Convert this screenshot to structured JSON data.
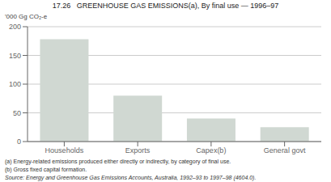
{
  "chart_data": {
    "type": "bar",
    "title": "17.26   GREENHOUSE GAS EMISSIONS(a), By final use — 1996–97",
    "y_label": "'000 Gg CO₂-e",
    "categories": [
      "Households",
      "Exports",
      "Capex(b)",
      "General govt"
    ],
    "values": [
      178,
      80,
      40,
      25
    ],
    "color": "#d0d8d2",
    "ylim": [
      0,
      200
    ],
    "yticks": [
      0,
      50,
      100,
      150,
      200
    ],
    "grid": true,
    "annotations": [
      "(a) Energy-related emissions produced either directly or indirectly, by category of final use.",
      "(b) Gross fixed capital formation.",
      "Source: Energy and Greenhouse Gas Emissions Accounts, Australia, 1992–93 to 1997–98 (4604.0)."
    ]
  }
}
